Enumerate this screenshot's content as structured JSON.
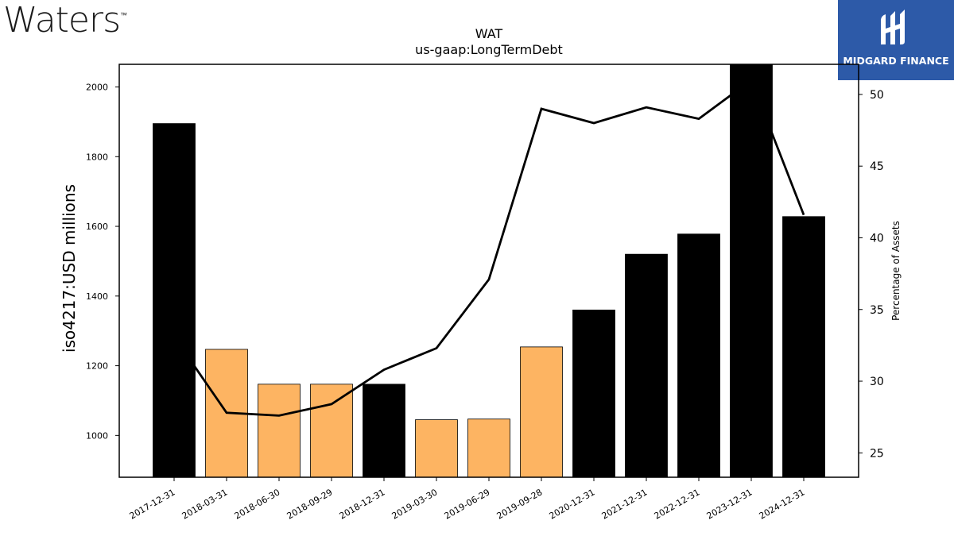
{
  "logos": {
    "left_text": "Waters",
    "left_tm": "™",
    "right_text": "MIDGARD FINANCE"
  },
  "chart_data": {
    "type": "bar",
    "title": "WAT",
    "subtitle": "us-gaap:LongTermDebt",
    "ylabel": "iso4217:USD  millions",
    "y2label": "Percentage of Assets",
    "ylim": [
      880,
      2065
    ],
    "y2lim": [
      23.3,
      52.1
    ],
    "yticks": [
      1000,
      1200,
      1400,
      1600,
      1800,
      2000
    ],
    "y2ticks": [
      25,
      30,
      35,
      40,
      45,
      50
    ],
    "categories": [
      "2017-12-31",
      "2018-03-31",
      "2018-06-30",
      "2018-09-29",
      "2018-12-31",
      "2019-03-30",
      "2019-06-29",
      "2019-09-28",
      "2020-12-31",
      "2021-12-31",
      "2022-12-31",
      "2023-12-31",
      "2024-12-31"
    ],
    "values": [
      1895,
      1247,
      1147,
      1147,
      1147,
      1045,
      1047,
      1254,
      1360,
      1520,
      1578,
      2065,
      1628
    ],
    "bar_colors": [
      "#000000",
      "#fdb462",
      "#fdb462",
      "#fdb462",
      "#000000",
      "#fdb462",
      "#fdb462",
      "#fdb462",
      "#000000",
      "#000000",
      "#000000",
      "#000000",
      "#000000"
    ],
    "line": {
      "name": "Percentage of Assets",
      "color": "#000000",
      "values": [
        33.1,
        27.8,
        27.6,
        28.4,
        30.8,
        32.3,
        37.1,
        49.0,
        48.0,
        49.1,
        48.3,
        51.0,
        41.6
      ]
    },
    "grid": false
  }
}
